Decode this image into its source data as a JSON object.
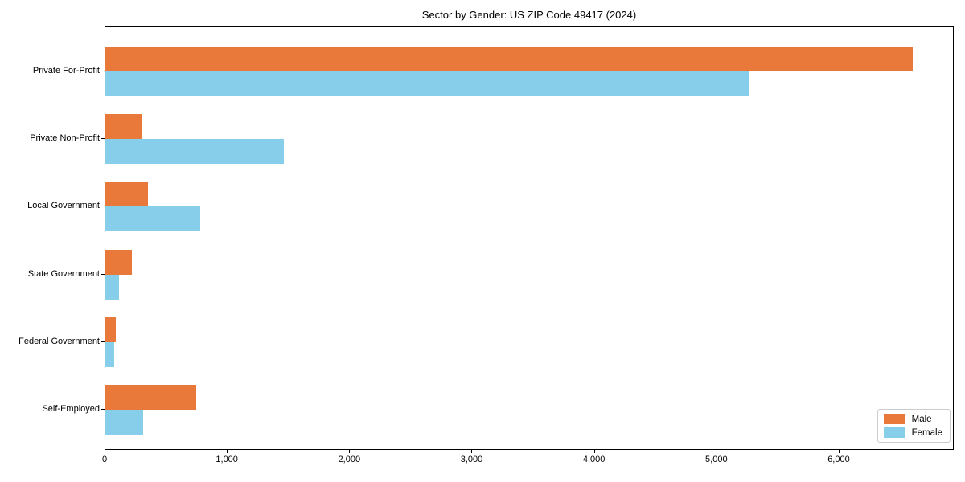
{
  "title": "Sector by Gender: US ZIP Code 49417 (2024)",
  "colors": {
    "male_bar": "#e8793b",
    "female_bar": "#87ceeb",
    "axis": "#000000",
    "legend_border": "#cccccc",
    "background": "#ffffff"
  },
  "chart_data": {
    "type": "bar",
    "orientation": "horizontal",
    "title": "Sector by Gender: US ZIP Code 49417 (2024)",
    "categories": [
      "Private For-Profit",
      "Private Non-Profit",
      "Local Government",
      "State Government",
      "Federal Government",
      "Self-Employed"
    ],
    "series": [
      {
        "name": "Male",
        "color": "#e8793b",
        "values": [
          6610,
          295,
          350,
          215,
          85,
          745
        ]
      },
      {
        "name": "Female",
        "color": "#87ceeb",
        "values": [
          5265,
          1465,
          780,
          110,
          70,
          310
        ]
      }
    ],
    "xlabel": "",
    "ylabel": "",
    "xlim": [
      0,
      6940
    ],
    "xticks": [
      0,
      1000,
      2000,
      3000,
      4000,
      5000,
      6000
    ],
    "xtick_labels": [
      "0",
      "1,000",
      "2,000",
      "3,000",
      "4,000",
      "5,000",
      "6,000"
    ],
    "grid": false,
    "legend": {
      "position": "lower right",
      "entries": [
        "Male",
        "Female"
      ]
    }
  }
}
